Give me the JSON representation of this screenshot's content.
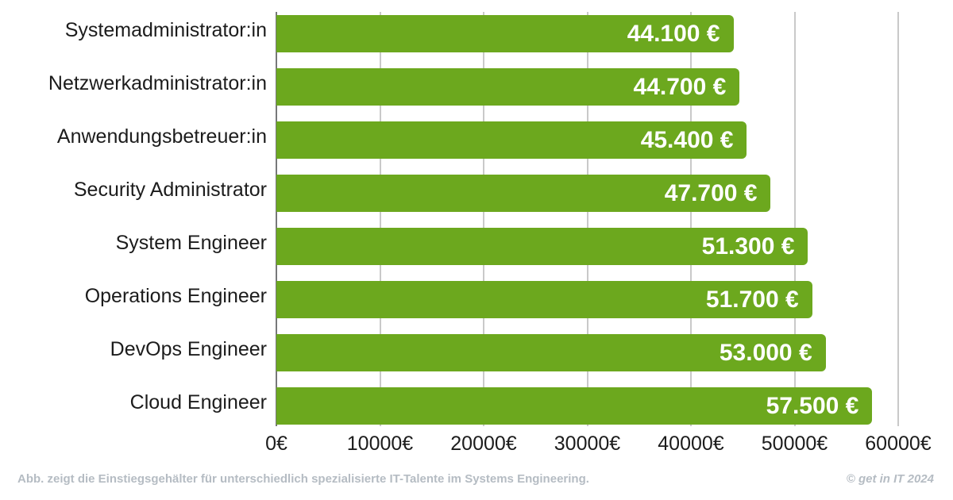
{
  "chart_data": {
    "type": "bar",
    "orientation": "horizontal",
    "title": "",
    "xlabel": "",
    "ylabel": "",
    "categories": [
      "Systemadministrator:in",
      "Netzwerkadministrator:in",
      "Anwendungsbetreuer:in",
      "Security Administrator",
      "System Engineer",
      "Operations Engineer",
      "DevOps Engineer",
      "Cloud Engineer"
    ],
    "values": [
      44100,
      44700,
      45400,
      47700,
      51300,
      51700,
      53000,
      57500
    ],
    "value_labels": [
      "44.100 €",
      "44.700 €",
      "45.400 €",
      "47.700 €",
      "51.300 €",
      "51.700 €",
      "53.000 €",
      "57.500 €"
    ],
    "x_ticks": [
      0,
      10000,
      20000,
      30000,
      40000,
      50000,
      60000
    ],
    "x_tick_labels": [
      "0€",
      "10000€",
      "20000€",
      "30000€",
      "40000€",
      "50000€",
      "60000€"
    ],
    "xlim": [
      0,
      63600
    ],
    "grid": "vertical-gridlines",
    "legend": "none"
  },
  "colors": {
    "bar": "#6ca81e",
    "gridline": "#c9c9c9",
    "zero_axis_line": "#77787a",
    "category_text": "#1c1c1c",
    "tick_text": "#1c1c1c",
    "value_text": "#ffffff",
    "footer_text": "#b5bcc3",
    "background": "#ffffff"
  },
  "footer": {
    "caption": "Abb. zeigt die Einstiegsgehälter für unterschiedlich spezialisierte IT-Talente im Systems Engineering.",
    "copyright": "© get in IT 2024"
  }
}
